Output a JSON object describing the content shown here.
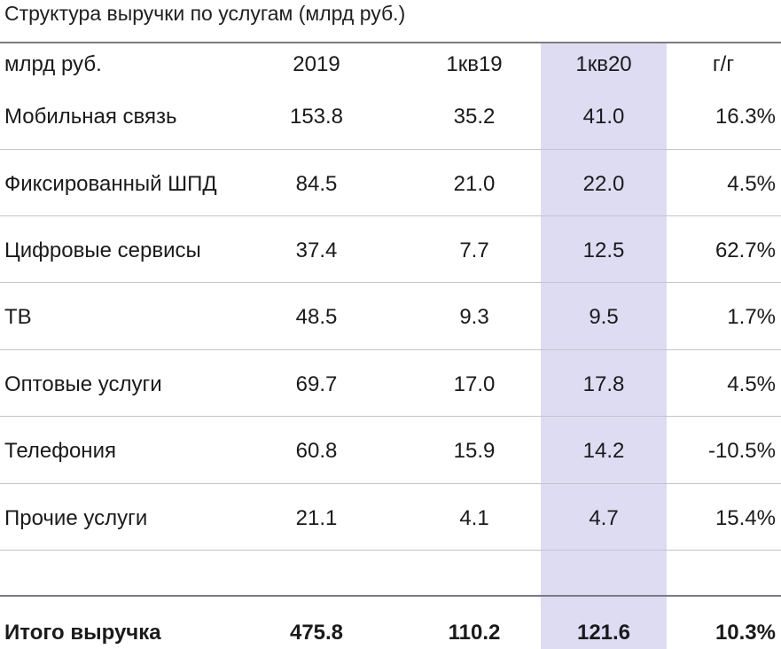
{
  "title": "Структура выручки по услугам (млрд руб.)",
  "header": {
    "label": "млрд руб.",
    "col_2019": "2019",
    "col_1q19": "1кв19",
    "col_1q20": "1кв20",
    "col_yoy": "г/г"
  },
  "rows": [
    {
      "label": "Мобильная связь",
      "v2019": "153.8",
      "v1q19": "35.2",
      "v1q20": "41.0",
      "yoy": "16.3%"
    },
    {
      "label": "Фиксированный ШПД",
      "v2019": "84.5",
      "v1q19": "21.0",
      "v1q20": "22.0",
      "yoy": "4.5%"
    },
    {
      "label": "Цифровые сервисы",
      "v2019": "37.4",
      "v1q19": "7.7",
      "v1q20": "12.5",
      "yoy": "62.7%"
    },
    {
      "label": "ТВ",
      "v2019": "48.5",
      "v1q19": "9.3",
      "v1q20": "9.5",
      "yoy": "1.7%"
    },
    {
      "label": "Оптовые услуги",
      "v2019": "69.7",
      "v1q19": "17.0",
      "v1q20": "17.8",
      "yoy": "4.5%"
    },
    {
      "label": "Телефония",
      "v2019": "60.8",
      "v1q19": "15.9",
      "v1q20": "14.2",
      "yoy": "-10.5%"
    },
    {
      "label": "Прочие услуги",
      "v2019": "21.1",
      "v1q19": "4.1",
      "v1q20": "4.7",
      "yoy": "15.4%"
    }
  ],
  "total": {
    "label": "Итого выручка",
    "v2019": "475.8",
    "v1q19": "110.2",
    "v1q20": "121.6",
    "yoy": "10.3%"
  },
  "colors": {
    "highlight": "#dedcf2",
    "rule": "#7a7a86",
    "divider": "#c4c4cc"
  }
}
